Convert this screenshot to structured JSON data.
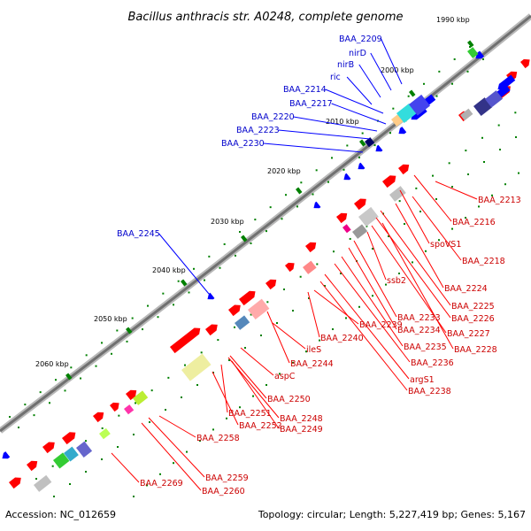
{
  "title": "Bacillus anthracis str. A0248, complete genome",
  "footer": {
    "accession": "Accession: NC_012659",
    "summary": "Topology: circular; Length: 5,227,419 bp; Genes: 5,167"
  },
  "colors": {
    "backbone": "#808080",
    "strand_plus": "#ff0000",
    "strand_minus": "#0000ff",
    "label_plus": "#cc0000",
    "label_minus": "#0000cc",
    "tick": "#008000"
  },
  "kbp_ticks": [
    "1990 kbp",
    "2000 kbp",
    "2010 kbp",
    "2020 kbp",
    "2030 kbp",
    "2040 kbp",
    "2050 kbp",
    "2060 kbp"
  ],
  "labels_minus": [
    "BAA_2209",
    "nirD",
    "nirB",
    "ric",
    "BAA_2214",
    "BAA_2217",
    "BAA_2220",
    "BAA_2223",
    "BAA_2230",
    "BAA_2245"
  ],
  "labels_plus": [
    "BAA_2213",
    "BAA_2216",
    "spoVS1",
    "BAA_2218",
    "ssb2",
    "BAA_2224",
    "BAA_2225",
    "BAA_2226",
    "BAA_2227",
    "BAA_2228",
    "BAA_2233",
    "BAA_2234",
    "BAA_2235",
    "BAA_2236",
    "argS1",
    "BAA_2238",
    "BAA_2239",
    "BAA_2240",
    "ileS",
    "BAA_2244",
    "aspC",
    "BAA_2250",
    "BAA_2251",
    "BAA_2248",
    "BAA_2252",
    "BAA_2249",
    "BAA_2258",
    "BAA_2259",
    "BAA_2269",
    "BAA_2260"
  ]
}
